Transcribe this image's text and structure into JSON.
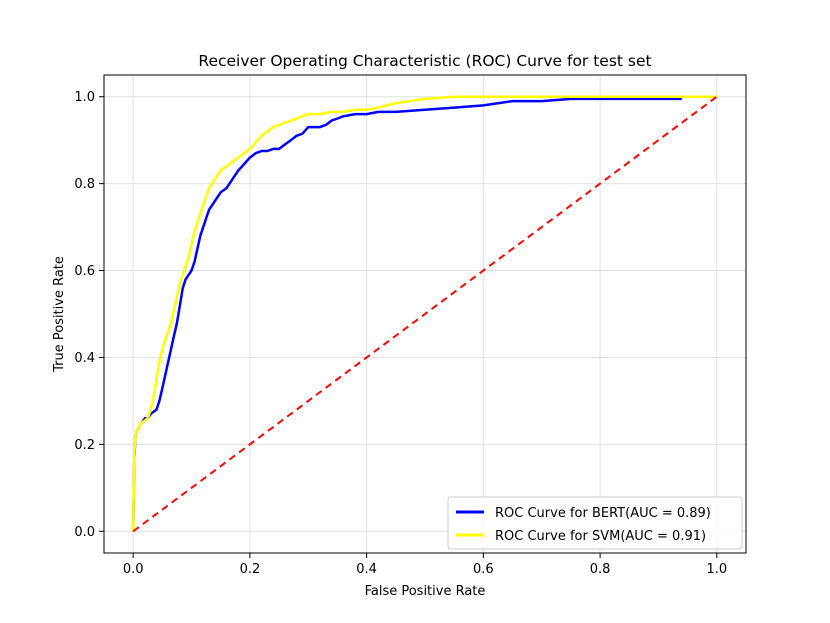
{
  "chart_data": {
    "type": "line",
    "title": "Receiver Operating Characteristic (ROC) Curve for test set",
    "xlabel": "False Positive Rate",
    "ylabel": "True Positive Rate",
    "xlim": [
      -0.05,
      1.05
    ],
    "ylim": [
      -0.05,
      1.05
    ],
    "grid": true,
    "legend_position": "lower-right",
    "xticks": [
      0.0,
      0.2,
      0.4,
      0.6,
      0.8,
      1.0
    ],
    "yticks": [
      0.0,
      0.2,
      0.4,
      0.6,
      0.8,
      1.0
    ],
    "xtick_labels": [
      "0.0",
      "0.2",
      "0.4",
      "0.6",
      "0.8",
      "1.0"
    ],
    "ytick_labels": [
      "0.0",
      "0.2",
      "0.4",
      "0.6",
      "0.8",
      "1.0"
    ],
    "series": [
      {
        "name": "ROC Curve for BERT(AUC = 0.89)",
        "color": "#0000ff",
        "style": "solid",
        "x": [
          0.0,
          0.002,
          0.004,
          0.006,
          0.01,
          0.015,
          0.02,
          0.025,
          0.03,
          0.035,
          0.04,
          0.045,
          0.05,
          0.055,
          0.06,
          0.065,
          0.07,
          0.075,
          0.08,
          0.085,
          0.09,
          0.095,
          0.1,
          0.105,
          0.11,
          0.115,
          0.12,
          0.125,
          0.13,
          0.135,
          0.14,
          0.145,
          0.15,
          0.155,
          0.16,
          0.165,
          0.17,
          0.175,
          0.18,
          0.19,
          0.2,
          0.21,
          0.22,
          0.23,
          0.24,
          0.25,
          0.26,
          0.27,
          0.28,
          0.29,
          0.3,
          0.31,
          0.32,
          0.33,
          0.34,
          0.35,
          0.36,
          0.38,
          0.4,
          0.42,
          0.45,
          0.5,
          0.55,
          0.6,
          0.65,
          0.7,
          0.75,
          0.8,
          0.85,
          0.9,
          0.94
        ],
        "y": [
          0.0,
          0.17,
          0.22,
          0.23,
          0.24,
          0.25,
          0.26,
          0.26,
          0.27,
          0.275,
          0.28,
          0.3,
          0.33,
          0.36,
          0.39,
          0.42,
          0.45,
          0.48,
          0.52,
          0.56,
          0.58,
          0.59,
          0.6,
          0.62,
          0.65,
          0.68,
          0.7,
          0.72,
          0.74,
          0.75,
          0.76,
          0.77,
          0.78,
          0.785,
          0.79,
          0.8,
          0.81,
          0.82,
          0.83,
          0.845,
          0.86,
          0.87,
          0.875,
          0.875,
          0.88,
          0.88,
          0.89,
          0.9,
          0.91,
          0.915,
          0.93,
          0.93,
          0.93,
          0.935,
          0.945,
          0.95,
          0.955,
          0.96,
          0.96,
          0.965,
          0.965,
          0.97,
          0.975,
          0.98,
          0.99,
          0.99,
          0.995,
          0.995,
          0.995,
          0.995,
          0.995
        ]
      },
      {
        "name": "ROC Curve for SVM(AUC = 0.91)",
        "color": "#ffff00",
        "style": "solid",
        "x": [
          0.0,
          0.002,
          0.004,
          0.006,
          0.01,
          0.015,
          0.02,
          0.025,
          0.03,
          0.035,
          0.04,
          0.045,
          0.05,
          0.055,
          0.06,
          0.065,
          0.07,
          0.075,
          0.08,
          0.085,
          0.09,
          0.095,
          0.1,
          0.105,
          0.11,
          0.115,
          0.12,
          0.125,
          0.13,
          0.135,
          0.14,
          0.145,
          0.15,
          0.16,
          0.17,
          0.18,
          0.19,
          0.2,
          0.21,
          0.22,
          0.23,
          0.24,
          0.25,
          0.26,
          0.27,
          0.28,
          0.29,
          0.3,
          0.32,
          0.34,
          0.36,
          0.38,
          0.4,
          0.42,
          0.45,
          0.5,
          0.55,
          0.6,
          0.65,
          0.7,
          0.8,
          0.9,
          1.0
        ],
        "y": [
          0.0,
          0.18,
          0.22,
          0.23,
          0.24,
          0.25,
          0.255,
          0.26,
          0.28,
          0.31,
          0.35,
          0.39,
          0.42,
          0.44,
          0.46,
          0.48,
          0.51,
          0.54,
          0.57,
          0.59,
          0.61,
          0.63,
          0.66,
          0.69,
          0.71,
          0.73,
          0.75,
          0.77,
          0.79,
          0.8,
          0.81,
          0.82,
          0.83,
          0.84,
          0.85,
          0.86,
          0.87,
          0.88,
          0.895,
          0.91,
          0.92,
          0.93,
          0.935,
          0.94,
          0.945,
          0.95,
          0.955,
          0.96,
          0.96,
          0.965,
          0.965,
          0.97,
          0.97,
          0.975,
          0.985,
          0.995,
          1.0,
          1.0,
          1.0,
          1.0,
          1.0,
          1.0,
          1.0
        ]
      },
      {
        "name": "chance",
        "color": "#ff0000",
        "style": "dashed",
        "show_in_legend": false,
        "x": [
          0.0,
          1.0
        ],
        "y": [
          0.0,
          1.0
        ]
      }
    ]
  }
}
